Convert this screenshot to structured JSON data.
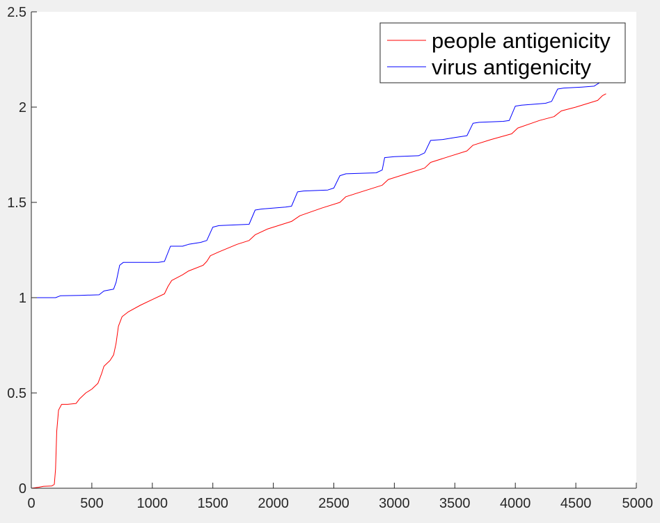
{
  "chart_data": {
    "type": "line",
    "title": "",
    "xlabel": "",
    "ylabel": "",
    "xlim": [
      0,
      5000
    ],
    "ylim": [
      0,
      2.5
    ],
    "xticks": [
      0,
      500,
      1000,
      1500,
      2000,
      2500,
      3000,
      3500,
      4000,
      4500,
      5000
    ],
    "yticks": [
      0,
      0.5,
      1,
      1.5,
      2,
      2.5
    ],
    "xtick_labels": [
      "0",
      "500",
      "1000",
      "1500",
      "2000",
      "2500",
      "3000",
      "3500",
      "4000",
      "4500",
      "5000"
    ],
    "ytick_labels": [
      "0",
      "0.5",
      "1",
      "1.5",
      "2",
      "2.5"
    ],
    "grid": false,
    "legend_position": "top-right",
    "series": [
      {
        "name": "people antigenicity",
        "color": "#ff0000",
        "points": [
          [
            0,
            0.0
          ],
          [
            60,
            0.005
          ],
          [
            100,
            0.01
          ],
          [
            170,
            0.012
          ],
          [
            190,
            0.02
          ],
          [
            200,
            0.1
          ],
          [
            210,
            0.3
          ],
          [
            225,
            0.41
          ],
          [
            250,
            0.44
          ],
          [
            300,
            0.44
          ],
          [
            370,
            0.445
          ],
          [
            400,
            0.47
          ],
          [
            450,
            0.5
          ],
          [
            500,
            0.52
          ],
          [
            550,
            0.55
          ],
          [
            580,
            0.6
          ],
          [
            600,
            0.64
          ],
          [
            650,
            0.67
          ],
          [
            680,
            0.7
          ],
          [
            700,
            0.76
          ],
          [
            720,
            0.85
          ],
          [
            750,
            0.9
          ],
          [
            800,
            0.925
          ],
          [
            900,
            0.96
          ],
          [
            1000,
            0.99
          ],
          [
            1100,
            1.02
          ],
          [
            1130,
            1.06
          ],
          [
            1160,
            1.09
          ],
          [
            1250,
            1.12
          ],
          [
            1300,
            1.14
          ],
          [
            1420,
            1.17
          ],
          [
            1450,
            1.19
          ],
          [
            1480,
            1.22
          ],
          [
            1550,
            1.24
          ],
          [
            1700,
            1.28
          ],
          [
            1800,
            1.3
          ],
          [
            1850,
            1.33
          ],
          [
            1950,
            1.36
          ],
          [
            2150,
            1.4
          ],
          [
            2220,
            1.43
          ],
          [
            2400,
            1.47
          ],
          [
            2550,
            1.5
          ],
          [
            2600,
            1.53
          ],
          [
            2800,
            1.57
          ],
          [
            2900,
            1.59
          ],
          [
            2950,
            1.62
          ],
          [
            3100,
            1.65
          ],
          [
            3250,
            1.68
          ],
          [
            3300,
            1.71
          ],
          [
            3450,
            1.74
          ],
          [
            3600,
            1.77
          ],
          [
            3650,
            1.8
          ],
          [
            3800,
            1.83
          ],
          [
            3970,
            1.86
          ],
          [
            4020,
            1.89
          ],
          [
            4200,
            1.93
          ],
          [
            4320,
            1.95
          ],
          [
            4380,
            1.98
          ],
          [
            4500,
            2.0
          ],
          [
            4680,
            2.035
          ],
          [
            4720,
            2.06
          ],
          [
            4750,
            2.07
          ]
        ]
      },
      {
        "name": "virus antigenicity",
        "color": "#0000ff",
        "points": [
          [
            0,
            1.0
          ],
          [
            200,
            1.0
          ],
          [
            240,
            1.01
          ],
          [
            400,
            1.012
          ],
          [
            560,
            1.015
          ],
          [
            600,
            1.035
          ],
          [
            680,
            1.045
          ],
          [
            700,
            1.08
          ],
          [
            730,
            1.17
          ],
          [
            760,
            1.185
          ],
          [
            1050,
            1.185
          ],
          [
            1100,
            1.19
          ],
          [
            1150,
            1.27
          ],
          [
            1250,
            1.27
          ],
          [
            1300,
            1.28
          ],
          [
            1400,
            1.29
          ],
          [
            1450,
            1.3
          ],
          [
            1500,
            1.37
          ],
          [
            1550,
            1.378
          ],
          [
            1800,
            1.385
          ],
          [
            1850,
            1.46
          ],
          [
            1900,
            1.465
          ],
          [
            2100,
            1.475
          ],
          [
            2150,
            1.48
          ],
          [
            2200,
            1.555
          ],
          [
            2250,
            1.56
          ],
          [
            2450,
            1.565
          ],
          [
            2500,
            1.575
          ],
          [
            2550,
            1.64
          ],
          [
            2600,
            1.65
          ],
          [
            2850,
            1.655
          ],
          [
            2900,
            1.67
          ],
          [
            2920,
            1.735
          ],
          [
            3000,
            1.74
          ],
          [
            3200,
            1.745
          ],
          [
            3250,
            1.76
          ],
          [
            3300,
            1.825
          ],
          [
            3400,
            1.83
          ],
          [
            3500,
            1.84
          ],
          [
            3600,
            1.85
          ],
          [
            3650,
            1.915
          ],
          [
            3700,
            1.92
          ],
          [
            3900,
            1.925
          ],
          [
            3950,
            1.93
          ],
          [
            4000,
            2.005
          ],
          [
            4050,
            2.01
          ],
          [
            4250,
            2.02
          ],
          [
            4300,
            2.03
          ],
          [
            4350,
            2.095
          ],
          [
            4400,
            2.1
          ],
          [
            4550,
            2.105
          ],
          [
            4650,
            2.11
          ],
          [
            4700,
            2.13
          ],
          [
            4720,
            2.15
          ]
        ]
      }
    ]
  }
}
